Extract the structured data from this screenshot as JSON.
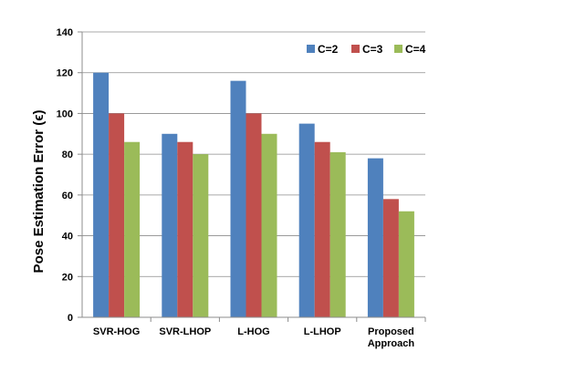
{
  "chart_data": {
    "type": "bar",
    "title": "",
    "xlabel": "",
    "ylabel": "Pose Estimation Error (ϵ)",
    "ylim": [
      0,
      140
    ],
    "yticks": [
      0,
      20,
      40,
      60,
      80,
      100,
      120,
      140
    ],
    "grid": true,
    "legend_position": "top-right",
    "categories": [
      [
        "SVR-HOG"
      ],
      [
        "SVR-LHOP"
      ],
      [
        "L-HOG"
      ],
      [
        "L-LHOP"
      ],
      [
        "Proposed",
        "Approach"
      ]
    ],
    "series": [
      {
        "name": "C=2",
        "color": "#4f81bd",
        "values": [
          120,
          90,
          116,
          95,
          78
        ]
      },
      {
        "name": "C=3",
        "color": "#c0504d",
        "values": [
          100,
          86,
          100,
          86,
          58
        ]
      },
      {
        "name": "C=4",
        "color": "#9bbb59",
        "values": [
          86,
          80,
          90,
          81,
          52
        ]
      }
    ]
  }
}
